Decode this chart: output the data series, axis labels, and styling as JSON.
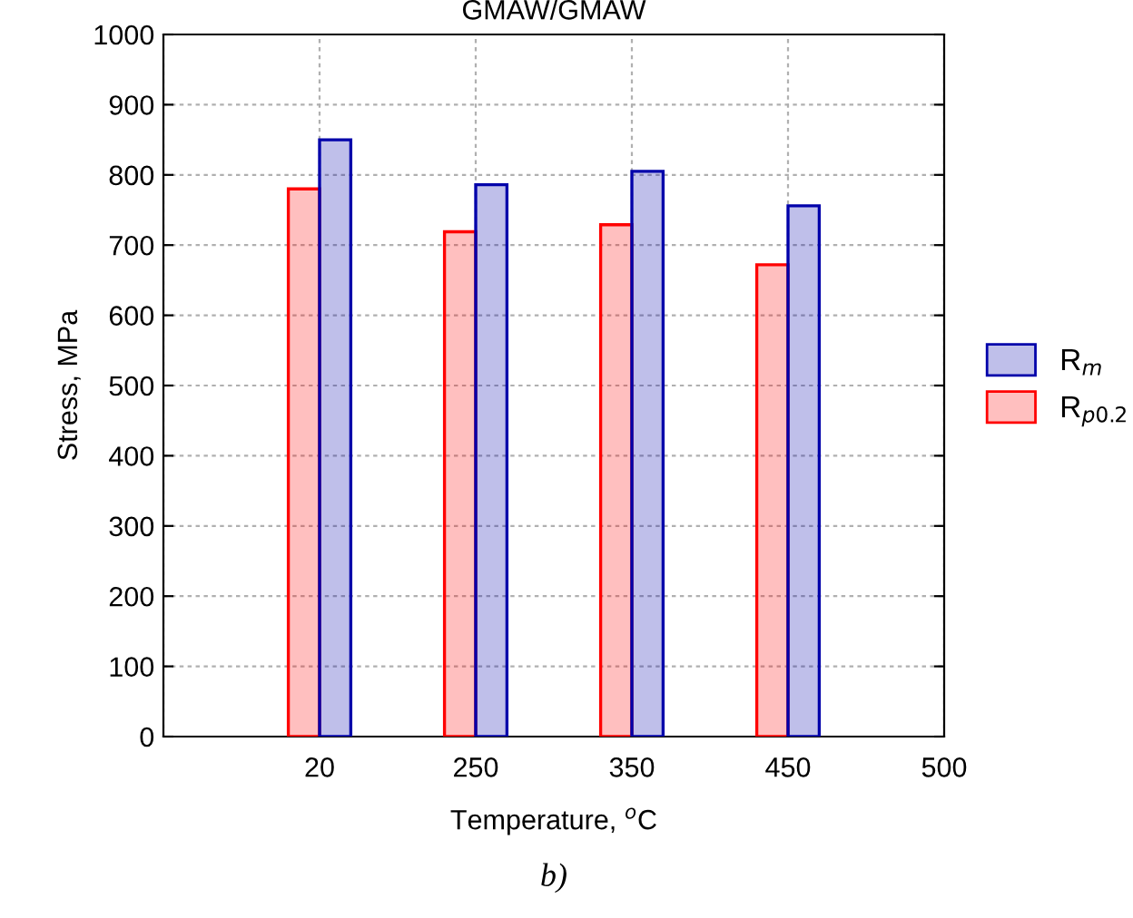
{
  "chart_data": {
    "type": "bar",
    "title": "GMAW/GMAW",
    "xlabel": "Temperature, $^{o}$C",
    "ylabel": "Stress, MPa",
    "categories": [
      null,
      "20",
      "250",
      "350",
      "450",
      "500"
    ],
    "series": [
      {
        "name": "R$_{p0.2}$",
        "color": "#ff0000",
        "values": [
          null,
          780,
          719,
          729,
          672,
          null
        ]
      },
      {
        "name": "R$_{m}$",
        "color": "#0000aa",
        "values": [
          null,
          850,
          786,
          805,
          756,
          null
        ]
      }
    ],
    "ylim": [
      0,
      1000
    ],
    "yticks": [
      0,
      100,
      200,
      300,
      400,
      500,
      600,
      700,
      800,
      900,
      1000
    ],
    "grid": true,
    "legend": "right",
    "annotations": [
      "b)"
    ]
  }
}
